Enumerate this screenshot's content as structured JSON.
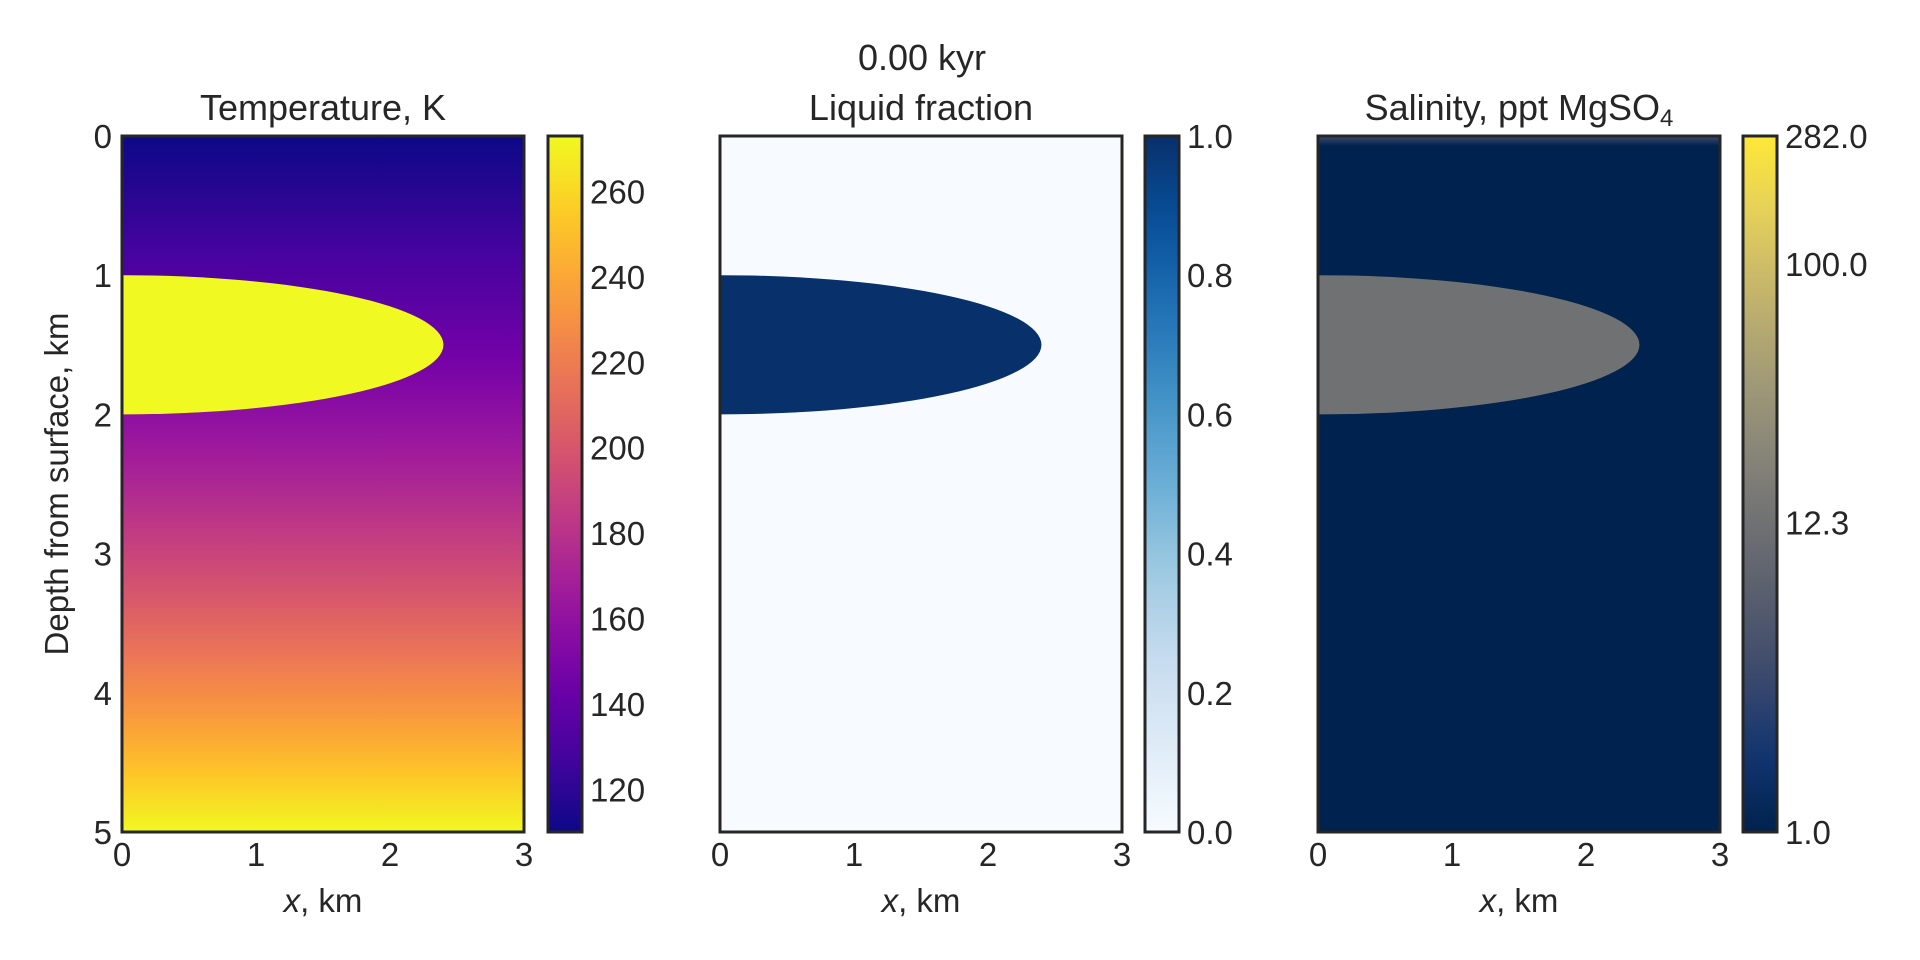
{
  "figure": {
    "suptitle": "0.00 kyr",
    "colors": {
      "frame": "#262626",
      "plasma": [
        "#0d0887",
        "#46039f",
        "#7201a8",
        "#9c179e",
        "#bd3786",
        "#d8576b",
        "#ed7953",
        "#fb9f3a",
        "#fdca26",
        "#f0f921"
      ],
      "blues": [
        "#f7fbff",
        "#deebf7",
        "#c6dbef",
        "#9ecae1",
        "#6baed6",
        "#4292c6",
        "#2171b5",
        "#08519c",
        "#08306b"
      ],
      "cividis": [
        "#00224e",
        "#123570",
        "#3b496c",
        "#575d6d",
        "#707173",
        "#8a8779",
        "#a69d75",
        "#c4b56c",
        "#e4cf5b",
        "#fee838"
      ]
    }
  },
  "chart_data": [
    {
      "type": "heatmap",
      "title": "Temperature, K",
      "xlabel_var": "x",
      "xlabel_unit": ", km",
      "ylabel": "Depth from surface, km",
      "xlim": [
        0,
        3
      ],
      "ylim": [
        5,
        0
      ],
      "xticks": [
        "0",
        "1",
        "2",
        "3"
      ],
      "yticks": [
        "0",
        "1",
        "2",
        "3",
        "4",
        "5"
      ],
      "field": {
        "surface_value": 110,
        "base_value": 273,
        "profile": "conductive"
      },
      "sill": {
        "x_max": 2.4,
        "depth_top": 1.0,
        "depth_bottom": 2.0,
        "value": 273
      },
      "colorbar": {
        "colormap": "plasma",
        "scale": "linear",
        "range": [
          110,
          273
        ],
        "ticks": [
          {
            "value": 120,
            "label": "120"
          },
          {
            "value": 140,
            "label": "140"
          },
          {
            "value": 160,
            "label": "160"
          },
          {
            "value": 180,
            "label": "180"
          },
          {
            "value": 200,
            "label": "200"
          },
          {
            "value": 220,
            "label": "220"
          },
          {
            "value": 240,
            "label": "240"
          },
          {
            "value": 260,
            "label": "260"
          }
        ]
      }
    },
    {
      "type": "heatmap",
      "title": "Liquid fraction",
      "xlabel_var": "x",
      "xlabel_unit": ", km",
      "xlim": [
        0,
        3
      ],
      "ylim": [
        5,
        0
      ],
      "xticks": [
        "0",
        "1",
        "2",
        "3"
      ],
      "field": {
        "surface_value": 0.0,
        "base_value": 0.0,
        "profile": "uniform"
      },
      "sill": {
        "x_max": 2.4,
        "depth_top": 1.0,
        "depth_bottom": 2.0,
        "value": 1.0
      },
      "colorbar": {
        "colormap": "blues",
        "scale": "linear",
        "range": [
          0.0,
          1.0
        ],
        "ticks": [
          {
            "value": 0.0,
            "label": "0.0"
          },
          {
            "value": 0.2,
            "label": "0.2"
          },
          {
            "value": 0.4,
            "label": "0.4"
          },
          {
            "value": 0.6,
            "label": "0.6"
          },
          {
            "value": 0.8,
            "label": "0.8"
          },
          {
            "value": 1.0,
            "label": "1.0"
          }
        ]
      }
    },
    {
      "type": "heatmap",
      "title_main": "Salinity, ppt MgSO",
      "title_subscript": "4",
      "xlabel_var": "x",
      "xlabel_unit": ", km",
      "xlim": [
        0,
        3
      ],
      "ylim": [
        5,
        0
      ],
      "xticks": [
        "0",
        "1",
        "2",
        "3"
      ],
      "field": {
        "surface_value": 4.0,
        "base_value": 1.0,
        "profile": "uniform-with-surface-layer"
      },
      "sill": {
        "x_max": 2.4,
        "depth_top": 1.0,
        "depth_bottom": 2.0,
        "value": 12.3
      },
      "colorbar": {
        "colormap": "cividis",
        "scale": "log",
        "range": [
          1.0,
          282.0
        ],
        "ticks": [
          {
            "value": 1.0,
            "label": "1.0"
          },
          {
            "value": 12.3,
            "label": "12.3"
          },
          {
            "value": 100.0,
            "label": "100.0"
          },
          {
            "value": 282.0,
            "label": "282.0"
          }
        ]
      }
    }
  ]
}
